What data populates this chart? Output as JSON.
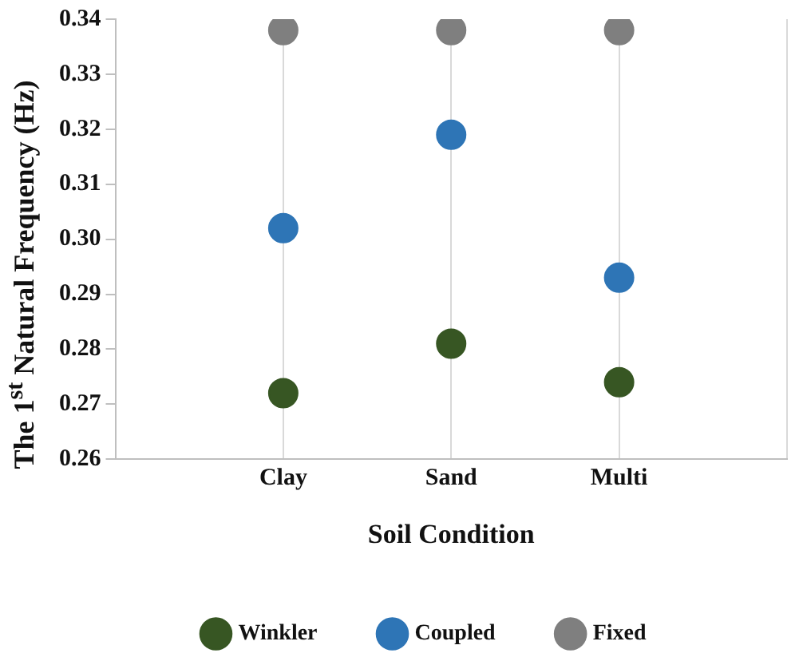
{
  "chart_data": {
    "type": "scatter",
    "xlabel": "Soil Condition",
    "ylabel": "The 1$^{st}$ Natural Frequency (Hz)",
    "categories": [
      "Clay",
      "Sand",
      "Multi"
    ],
    "series": [
      {
        "name": "Winkler",
        "color": "#375623",
        "values": [
          0.272,
          0.281,
          0.274
        ]
      },
      {
        "name": "Coupled",
        "color": "#2e75b6",
        "values": [
          0.302,
          0.319,
          0.293
        ]
      },
      {
        "name": "Fixed",
        "color": "#7f7f7f",
        "values": [
          0.338,
          0.338,
          0.338
        ]
      }
    ],
    "ylim": [
      0.26,
      0.34
    ],
    "yticks": [
      {
        "value": 0.26,
        "label": "0.26"
      },
      {
        "value": 0.27,
        "label": "0.27"
      },
      {
        "value": 0.28,
        "label": "0.28"
      },
      {
        "value": 0.29,
        "label": "0.29"
      },
      {
        "value": 0.3,
        "label": "0.30"
      },
      {
        "value": 0.31,
        "label": "0.31"
      },
      {
        "value": 0.32,
        "label": "0.32"
      },
      {
        "value": 0.33,
        "label": "0.33"
      },
      {
        "value": 0.34,
        "label": "0.34"
      }
    ],
    "grid": "x",
    "legend": "bottom",
    "marker": "circle"
  }
}
